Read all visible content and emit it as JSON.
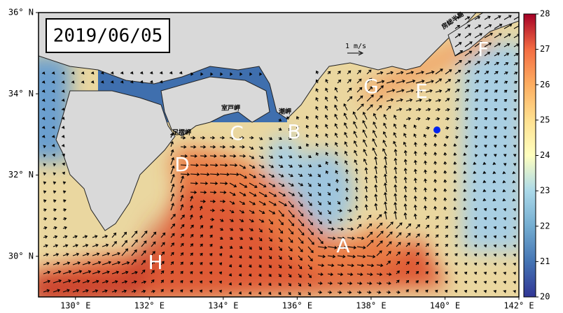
{
  "map": {
    "date": "2019/06/05",
    "xlim": [
      129,
      142
    ],
    "xticks": [
      {
        "value": 130,
        "label": "130° E"
      },
      {
        "value": 132,
        "label": "132° E"
      },
      {
        "value": 134,
        "label": "134° E"
      },
      {
        "value": 136,
        "label": "136° E"
      },
      {
        "value": 138,
        "label": "138° E"
      },
      {
        "value": 140,
        "label": "140° E"
      },
      {
        "value": 142,
        "label": "142° E"
      }
    ],
    "ylim": [
      29,
      36
    ],
    "yticks": [
      {
        "value": 30,
        "label": "30° N"
      },
      {
        "value": 32,
        "label": "32° N"
      },
      {
        "value": 34,
        "label": "34° N"
      },
      {
        "value": 36,
        "label": "36° N"
      }
    ],
    "colorbar": {
      "lim": [
        20,
        28
      ],
      "ticks": [
        20,
        21,
        22,
        23,
        24,
        25,
        26,
        27,
        28
      ]
    },
    "regions": [
      "A",
      "B",
      "C",
      "D",
      "E",
      "F",
      "G",
      "H"
    ],
    "places": [
      "室戸岬",
      "潮岬",
      "足摺岬",
      "房総半島"
    ],
    "scale": "1 m/s"
  }
}
